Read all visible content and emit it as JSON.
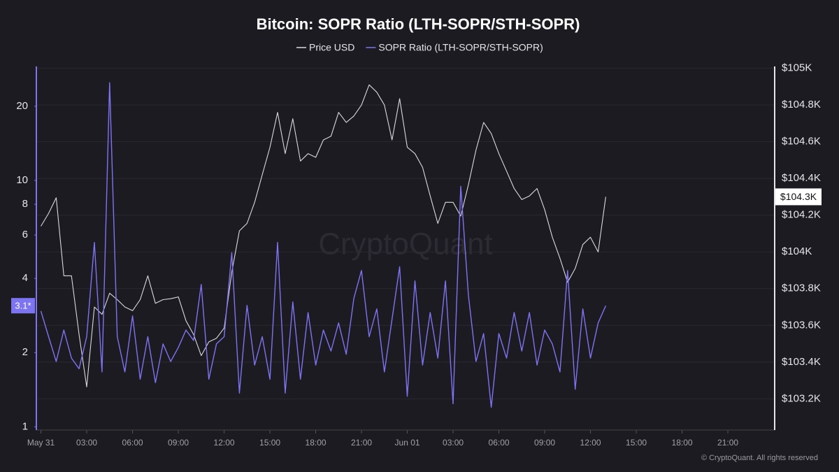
{
  "chart_data": {
    "type": "line",
    "title": "Bitcoin: SOPR Ratio (LTH-SOPR/STH-SOPR)",
    "watermark": "CryptoQuant",
    "copyright": "© CryptoQuant. All rights reserved",
    "x": [
      0,
      0.5,
      1,
      1.5,
      2,
      2.5,
      3,
      3.5,
      4,
      4.5,
      5,
      5.5,
      6,
      6.5,
      7,
      7.5,
      8,
      8.5,
      9,
      9.5,
      10,
      10.5,
      11,
      11.5,
      12,
      12.5,
      13,
      13.5,
      14,
      14.5,
      15,
      15.5,
      16,
      16.5,
      17,
      17.5,
      18,
      18.5,
      19,
      19.5,
      20,
      20.5,
      21,
      21.5,
      22,
      22.5,
      23,
      23.5,
      24,
      24.5,
      25,
      25.5,
      26,
      26.5,
      27,
      27.5,
      28,
      28.5,
      29,
      29.5,
      30,
      30.5,
      31,
      31.5,
      32,
      32.5,
      33,
      33.5,
      34,
      34.5,
      35,
      35.5,
      36,
      36.5,
      37
    ],
    "xlim": [
      -0.3,
      47.7
    ],
    "xticks": [
      {
        "value": 0,
        "label": "May 31"
      },
      {
        "value": 3,
        "label": "03:00"
      },
      {
        "value": 6,
        "label": "06:00"
      },
      {
        "value": 9,
        "label": "09:00"
      },
      {
        "value": 12,
        "label": "12:00"
      },
      {
        "value": 15,
        "label": "15:00"
      },
      {
        "value": 18,
        "label": "18:00"
      },
      {
        "value": 21,
        "label": "21:00"
      },
      {
        "value": 24,
        "label": "Jun 01"
      },
      {
        "value": 27,
        "label": "03:00"
      },
      {
        "value": 30,
        "label": "06:00"
      },
      {
        "value": 33,
        "label": "09:00"
      },
      {
        "value": 36,
        "label": "12:00"
      },
      {
        "value": 39,
        "label": "15:00"
      },
      {
        "value": 42,
        "label": "18:00"
      },
      {
        "value": 45,
        "label": "21:00"
      }
    ],
    "series": [
      {
        "name": "Price USD",
        "color": "#d9d9de",
        "axis": "y2",
        "values": [
          104140,
          104210,
          104295,
          103870,
          103870,
          103550,
          103265,
          103700,
          103660,
          103775,
          103740,
          103700,
          103680,
          103740,
          103870,
          103720,
          103740,
          103745,
          103755,
          103625,
          103550,
          103435,
          103510,
          103530,
          103585,
          103890,
          104115,
          104155,
          104270,
          104420,
          104570,
          104760,
          104535,
          104725,
          104495,
          104535,
          104515,
          104610,
          104630,
          104760,
          104705,
          104740,
          104800,
          104910,
          104870,
          104800,
          104610,
          104835,
          104570,
          104535,
          104460,
          104305,
          104155,
          104270,
          104270,
          104195,
          104365,
          104555,
          104705,
          104645,
          104535,
          104440,
          104345,
          104285,
          104305,
          104345,
          104230,
          104080,
          103965,
          103835,
          103910,
          104040,
          104080,
          104000,
          104300
        ]
      },
      {
        "name": "SOPR Ratio (LTH-SOPR/STH-SOPR)",
        "color": "#7d74f2",
        "axis": "y",
        "values": [
          2.95,
          2.32,
          1.84,
          2.47,
          1.9,
          1.72,
          2.32,
          5.6,
          1.67,
          24.9,
          2.32,
          1.67,
          2.82,
          1.56,
          2.32,
          1.51,
          2.17,
          1.84,
          2.1,
          2.47,
          2.24,
          3.78,
          1.56,
          2.17,
          2.32,
          5.09,
          1.37,
          3.11,
          1.78,
          2.32,
          1.56,
          5.6,
          1.37,
          3.21,
          1.56,
          2.91,
          1.78,
          2.47,
          2.03,
          2.64,
          1.97,
          3.32,
          4.31,
          2.32,
          3.01,
          1.67,
          2.73,
          4.46,
          1.33,
          3.91,
          1.78,
          2.91,
          1.9,
          3.91,
          1.24,
          9.46,
          3.43,
          1.84,
          2.39,
          1.2,
          2.39,
          1.9,
          2.91,
          2.03,
          2.91,
          1.78,
          2.47,
          2.17,
          1.67,
          4.31,
          1.42,
          3.01,
          1.9,
          2.64,
          3.1
        ]
      }
    ],
    "ylim": [
      0.97,
      29
    ],
    "yscale": "log",
    "yticks": [
      1,
      2,
      4,
      6,
      8,
      10,
      20
    ],
    "y2lim": [
      103030,
      105010
    ],
    "y2ticks": [
      {
        "value": 103200,
        "label": "$103.2K"
      },
      {
        "value": 103400,
        "label": "$103.4K"
      },
      {
        "value": 103600,
        "label": "$103.6K"
      },
      {
        "value": 103800,
        "label": "$103.8K"
      },
      {
        "value": 104000,
        "label": "$104K"
      },
      {
        "value": 104200,
        "label": "$104.2K"
      },
      {
        "value": 104400,
        "label": "$104.4K"
      },
      {
        "value": 104600,
        "label": "$104.6K"
      },
      {
        "value": 104800,
        "label": "$104.8K"
      },
      {
        "value": 105000,
        "label": "$105K"
      }
    ],
    "grid": true,
    "last_labels": [
      {
        "axis": "y2",
        "value": 104300,
        "label": "$104.3K"
      },
      {
        "axis": "y",
        "value": 3.1,
        "label": "3.1*"
      }
    ]
  }
}
